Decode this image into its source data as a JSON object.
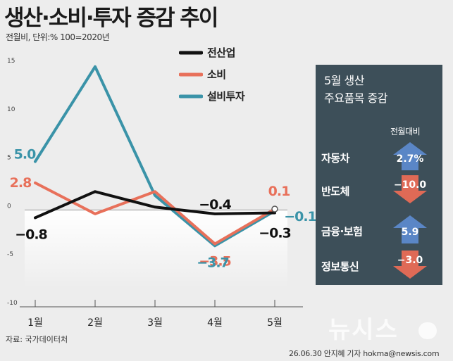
{
  "title": "생산·소비·투자 증감 추이",
  "subtitle": "전월비, 단위:% 100=2020년",
  "source": "자료: 국가데이터처",
  "credit": "26.06.30 안지혜 기자 hokma@newsis.com",
  "watermark": "뉴시스",
  "chart_data": {
    "type": "line",
    "title": "생산·소비·투자 증감 추이",
    "categories": [
      "1월",
      "2월",
      "3월",
      "4월",
      "5월"
    ],
    "ylim": [
      -10,
      15
    ],
    "yticks": [
      "15",
      "10",
      "5",
      "0",
      "-5",
      "-10"
    ],
    "series": [
      {
        "name": "전산업",
        "color": "#111111",
        "values": [
          -0.8,
          1.9,
          0.3,
          -0.4,
          -0.3
        ],
        "labels": [
          "−0.8",
          "",
          "",
          "−0.4",
          "−0.3"
        ]
      },
      {
        "name": "소비",
        "color": "#e8705a",
        "values": [
          2.8,
          -0.4,
          1.9,
          -3.5,
          0.1
        ],
        "labels": [
          "2.8",
          "",
          "",
          "−3.5",
          "0.1"
        ]
      },
      {
        "name": "설비투자",
        "color": "#3a93a8",
        "values": [
          5.0,
          14.8,
          1.5,
          -3.7,
          -0.1
        ],
        "labels": [
          "5.0",
          "",
          "",
          "−3.7",
          "−0.1"
        ]
      }
    ]
  },
  "panel": {
    "title_line1": "5월 생산",
    "title_line2": "주요품목 증감",
    "subheader": "전월대비",
    "items": [
      {
        "label": "자동차",
        "value": "2.7%",
        "direction": "up",
        "color": "#5a86c6"
      },
      {
        "label": "반도체",
        "value": "−10.0",
        "direction": "down",
        "color": "#df6a56"
      },
      {
        "label": "금융·보험",
        "value": "5.9",
        "direction": "up",
        "color": "#5a86c6"
      },
      {
        "label": "정보통신",
        "value": "−3.0",
        "direction": "down",
        "color": "#df6a56"
      }
    ]
  }
}
